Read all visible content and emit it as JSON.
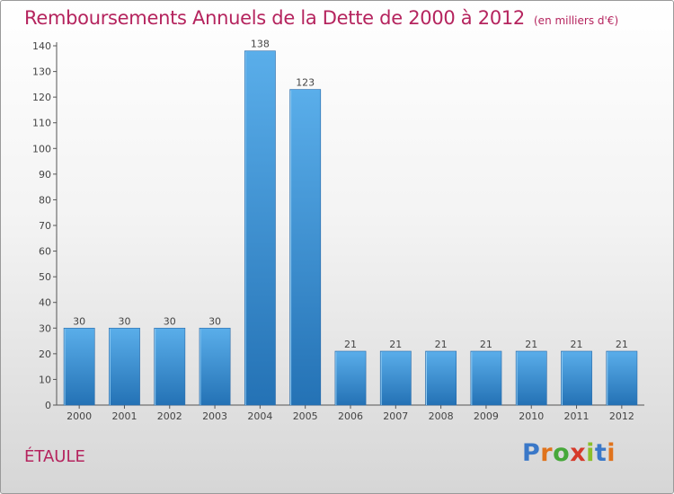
{
  "title": "Remboursements Annuels de la Dette de 2000 à 2012",
  "unit_note": "(en milliers d'€)",
  "city": "ÉTAULE",
  "logo": {
    "text": "Proxiti",
    "colors": [
      "#3a78c8",
      "#e0731c",
      "#47a83a",
      "#d63a2a",
      "#8bbf2a"
    ]
  },
  "colors": {
    "title": "#b5245e",
    "bar_top": "#5aaeea",
    "bar_bottom": "#2472b5"
  },
  "chart_data": {
    "type": "bar",
    "title": "Remboursements Annuels de la Dette de 2000 à 2012",
    "xlabel": "",
    "ylabel": "",
    "categories": [
      "2000",
      "2001",
      "2002",
      "2003",
      "2004",
      "2005",
      "2006",
      "2007",
      "2008",
      "2009",
      "2010",
      "2011",
      "2012"
    ],
    "values": [
      30,
      30,
      30,
      30,
      138,
      123,
      21,
      21,
      21,
      21,
      21,
      21,
      21
    ],
    "ylim": [
      0,
      140
    ],
    "yticks": [
      0,
      10,
      20,
      30,
      40,
      50,
      60,
      70,
      80,
      90,
      100,
      110,
      120,
      130,
      140
    ],
    "grid": false,
    "data_labels": true
  }
}
